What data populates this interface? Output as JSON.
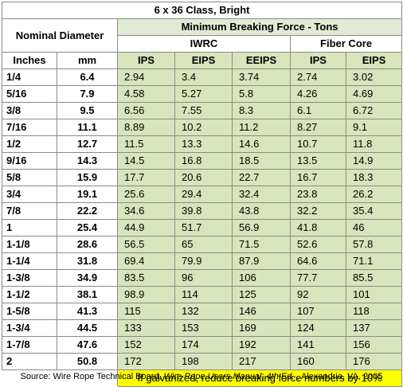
{
  "table": {
    "title": "6 x 36 Class, Bright",
    "nominal_header": "Nominal Diameter",
    "mbf_header": "Minimum Breaking Force - Tons",
    "iwrc_header": "IWRC",
    "fiber_header": "Fiber Core",
    "columns": [
      "Inches",
      "mm",
      "IPS",
      "EIPS",
      "EEIPS",
      "IPS",
      "EIPS"
    ],
    "rows": [
      [
        "1/4",
        "6.4",
        "2.94",
        "3.4",
        "3.74",
        "2.74",
        "3.02"
      ],
      [
        "5/16",
        "7.9",
        "4.58",
        "5.27",
        "5.8",
        "4.26",
        "4.69"
      ],
      [
        "3/8",
        "9.5",
        "6.56",
        "7.55",
        "8.3",
        "6.1",
        "6.72"
      ],
      [
        "7/16",
        "11.1",
        "8.89",
        "10.2",
        "11.2",
        "8.27",
        "9.1"
      ],
      [
        "1/2",
        "12.7",
        "11.5",
        "13.3",
        "14.6",
        "10.7",
        "11.8"
      ],
      [
        "9/16",
        "14.3",
        "14.5",
        "16.8",
        "18.5",
        "13.5",
        "14.9"
      ],
      [
        "5/8",
        "15.9",
        "17.7",
        "20.6",
        "22.7",
        "16.7",
        "18.3"
      ],
      [
        "3/4",
        "19.1",
        "25.6",
        "29.4",
        "32.4",
        "23.8",
        "26.2"
      ],
      [
        "7/8",
        "22.2",
        "34.6",
        "39.8",
        "43.8",
        "32.2",
        "35.4"
      ],
      [
        "1",
        "25.4",
        "44.9",
        "51.7",
        "56.9",
        "41.8",
        "46"
      ],
      [
        "1-1/8",
        "28.6",
        "56.5",
        "65",
        "71.5",
        "52.6",
        "57.8"
      ],
      [
        "1-1/4",
        "31.8",
        "69.4",
        "79.9",
        "87.9",
        "64.6",
        "71.1"
      ],
      [
        "1-3/8",
        "34.9",
        "83.5",
        "96",
        "106",
        "77.7",
        "85.5"
      ],
      [
        "1-1/2",
        "38.1",
        "98.9",
        "114",
        "125",
        "92",
        "101"
      ],
      [
        "1-5/8",
        "41.3",
        "115",
        "132",
        "146",
        "107",
        "118"
      ],
      [
        "1-3/4",
        "44.5",
        "133",
        "153",
        "169",
        "124",
        "137"
      ],
      [
        "1-7/8",
        "47.6",
        "152",
        "174",
        "192",
        "141",
        "156"
      ],
      [
        "2",
        "50.8",
        "172",
        "198",
        "217",
        "160",
        "176"
      ]
    ],
    "note": "If galvanized, reduce breaking force numbers by 10%"
  },
  "source": {
    "prefix": "Source: Wire Rope Technical Board, ",
    "book": "Wire Rope Users Manual, 4th Ed.",
    "suffix": " , Alexandria, VA,  2005"
  },
  "colors": {
    "value_fill": "#d8e4bc",
    "header_fill": "#e1ebd4",
    "note_fill": "#ffff00"
  }
}
